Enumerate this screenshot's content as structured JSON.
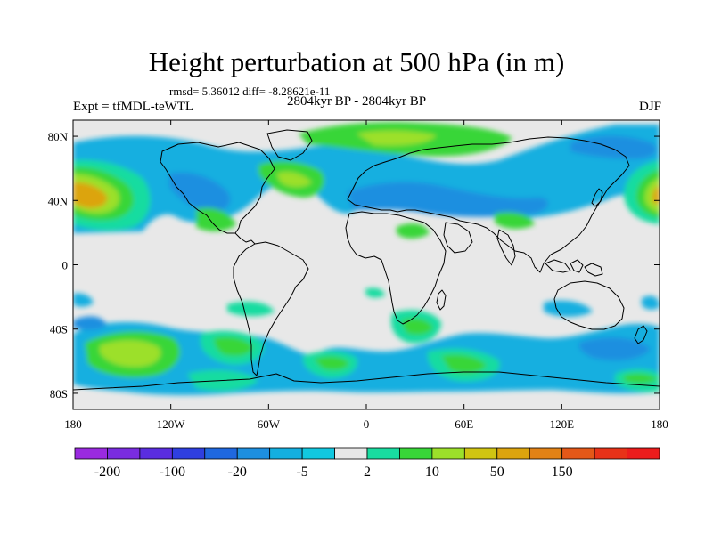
{
  "figure": {
    "title": "Height perturbation at 500 hPa (in m)",
    "stats_text": "rmsd= 5.36012 diff= -8.28621e-11",
    "period_text": "2804kyr BP - 2804kyr BP",
    "expt_text": "Expt = tfMDL-teWTL",
    "season_text": "DJF"
  },
  "map": {
    "projection": "cylindrical-equidistant",
    "lon_range": [
      -180,
      180
    ],
    "lat_range": [
      -90,
      90
    ],
    "lon_ticks": [
      {
        "value": -180,
        "label": "180"
      },
      {
        "value": -120,
        "label": "120W"
      },
      {
        "value": -60,
        "label": "60W"
      },
      {
        "value": 0,
        "label": "0"
      },
      {
        "value": 60,
        "label": "60E"
      },
      {
        "value": 120,
        "label": "120E"
      },
      {
        "value": 180,
        "label": "180"
      }
    ],
    "lat_ticks": [
      {
        "value": 80,
        "label": "80N"
      },
      {
        "value": 40,
        "label": "40N"
      },
      {
        "value": 0,
        "label": "0"
      },
      {
        "value": -40,
        "label": "40S"
      },
      {
        "value": -80,
        "label": "80S"
      }
    ],
    "background_color": "#e8e8e8",
    "coastline_color": "#000000"
  },
  "colorbar": {
    "colors": [
      "#9a2ae0",
      "#7a2ce0",
      "#5a2de0",
      "#2f3fe0",
      "#1f68e0",
      "#1d8fe0",
      "#14afe0",
      "#12c8e0",
      "#e8e8e8",
      "#19dca0",
      "#38d638",
      "#9ce02a",
      "#d0c412",
      "#dca40e",
      "#e28216",
      "#e45818",
      "#e83218",
      "#ec1c1c"
    ],
    "labels": [
      {
        "boundary": 1,
        "text": "-200"
      },
      {
        "boundary": 3,
        "text": "-100"
      },
      {
        "boundary": 5,
        "text": "-20"
      },
      {
        "boundary": 7,
        "text": "-5"
      },
      {
        "boundary": 9,
        "text": "2"
      },
      {
        "boundary": 11,
        "text": "10"
      },
      {
        "boundary": 13,
        "text": "50"
      },
      {
        "boundary": 15,
        "text": "150"
      }
    ]
  }
}
